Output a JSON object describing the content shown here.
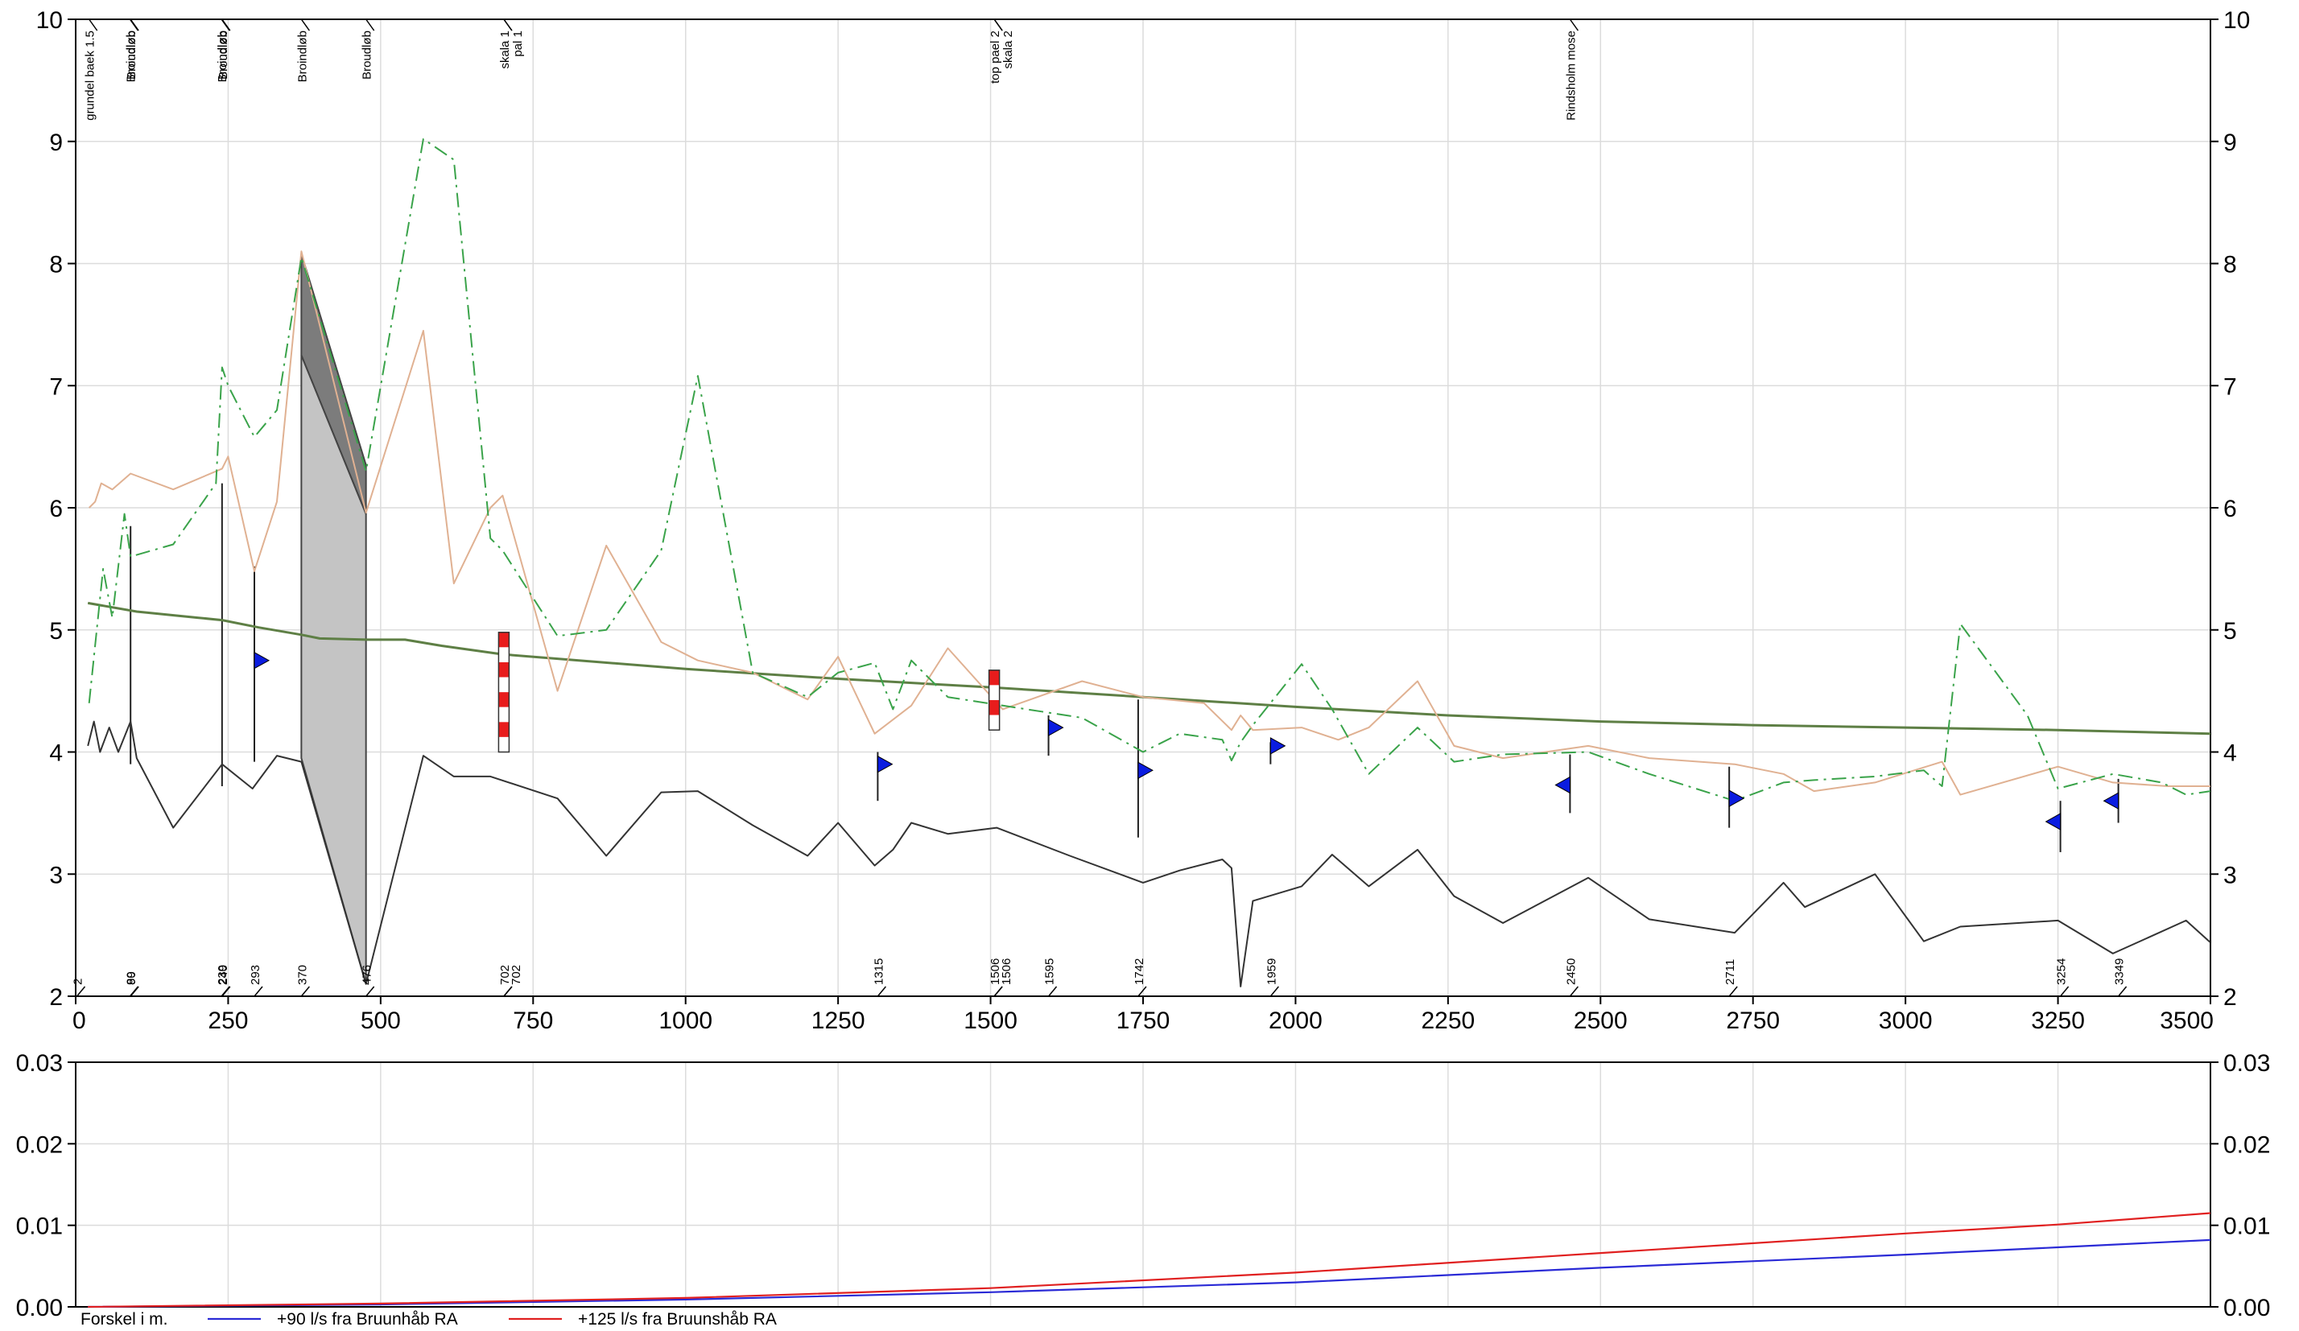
{
  "chart_data": [
    {
      "type": "line",
      "title": "",
      "xlabel": "",
      "ylabel": "",
      "xlim": [
        0,
        3500
      ],
      "ylim": [
        2,
        10
      ],
      "grid": true,
      "x_ticks": [
        "0",
        "250",
        "500",
        "750",
        "1000",
        "1250",
        "1500",
        "1750",
        "2000",
        "2250",
        "2500",
        "2750",
        "3000",
        "3250",
        "3500"
      ],
      "y_ticks": [
        "2",
        "3",
        "4",
        "5",
        "6",
        "7",
        "8",
        "9",
        "10"
      ],
      "top_annotations": [
        {
          "x": 22,
          "label": "grundel baek 1.5"
        },
        {
          "x": 89,
          "label": "Broindløb"
        },
        {
          "x": 90,
          "label": "Broudløb"
        },
        {
          "x": 239,
          "label": "Broindløb"
        },
        {
          "x": 240,
          "label": "Broudløb"
        },
        {
          "x": 370,
          "label": "Broindløb"
        },
        {
          "x": 476,
          "label": "Broudløb"
        },
        {
          "x": 702,
          "label": "skala 1"
        },
        {
          "x": 702,
          "label": "pal 1"
        },
        {
          "x": 1506,
          "label": "top pael 2"
        },
        {
          "x": 1506,
          "label": "skala 2"
        },
        {
          "x": 2450,
          "label": "Rindsholm mose"
        }
      ],
      "bottom_annotations": [
        {
          "x": 2,
          "label": "2"
        },
        {
          "x": 89,
          "label": "89"
        },
        {
          "x": 90,
          "label": "90"
        },
        {
          "x": 239,
          "label": "239"
        },
        {
          "x": 240,
          "label": "240"
        },
        {
          "x": 293,
          "label": "293"
        },
        {
          "x": 370,
          "label": "370"
        },
        {
          "x": 476,
          "label": "476"
        },
        {
          "x": 702,
          "label": "702"
        },
        {
          "x": 702,
          "label": "702"
        },
        {
          "x": 1315,
          "label": "1315"
        },
        {
          "x": 1506,
          "label": "1506"
        },
        {
          "x": 1506,
          "label": "1506"
        },
        {
          "x": 1595,
          "label": "1595"
        },
        {
          "x": 1742,
          "label": "1742"
        },
        {
          "x": 1959,
          "label": "1959"
        },
        {
          "x": 2450,
          "label": "2450"
        },
        {
          "x": 2711,
          "label": "2711"
        },
        {
          "x": 3254,
          "label": "3254"
        },
        {
          "x": 3349,
          "label": "3349"
        }
      ],
      "series": [
        {
          "id": "bed",
          "color": "#333333",
          "style": "solid",
          "points": [
            [
              20,
              4.05
            ],
            [
              30,
              4.25
            ],
            [
              40,
              4.0
            ],
            [
              55,
              4.2
            ],
            [
              70,
              4.0
            ],
            [
              90,
              4.25
            ],
            [
              100,
              3.95
            ],
            [
              160,
              3.38
            ],
            [
              240,
              3.9
            ],
            [
              290,
              3.7
            ],
            [
              330,
              3.97
            ],
            [
              370,
              3.92
            ],
            [
              476,
              2.1
            ],
            [
              570,
              3.97
            ],
            [
              620,
              3.8
            ],
            [
              680,
              3.8
            ],
            [
              790,
              3.62
            ],
            [
              870,
              3.15
            ],
            [
              960,
              3.67
            ],
            [
              1020,
              3.68
            ],
            [
              1110,
              3.4
            ],
            [
              1200,
              3.15
            ],
            [
              1250,
              3.42
            ],
            [
              1310,
              3.07
            ],
            [
              1340,
              3.2
            ],
            [
              1370,
              3.42
            ],
            [
              1430,
              3.33
            ],
            [
              1510,
              3.38
            ],
            [
              1630,
              3.15
            ],
            [
              1750,
              2.93
            ],
            [
              1810,
              3.03
            ],
            [
              1880,
              3.12
            ],
            [
              1895,
              3.05
            ],
            [
              1910,
              2.08
            ],
            [
              1930,
              2.78
            ],
            [
              2010,
              2.9
            ],
            [
              2060,
              3.16
            ],
            [
              2120,
              2.9
            ],
            [
              2200,
              3.2
            ],
            [
              2260,
              2.82
            ],
            [
              2340,
              2.6
            ],
            [
              2480,
              2.97
            ],
            [
              2580,
              2.63
            ],
            [
              2720,
              2.52
            ],
            [
              2800,
              2.93
            ],
            [
              2835,
              2.73
            ],
            [
              2950,
              3.0
            ],
            [
              3030,
              2.45
            ],
            [
              3090,
              2.57
            ],
            [
              3250,
              2.62
            ],
            [
              3340,
              2.35
            ],
            [
              3460,
              2.62
            ],
            [
              3500,
              2.44
            ]
          ]
        },
        {
          "id": "water-level",
          "color": "#5e7f45",
          "style": "solid",
          "points": [
            [
              20,
              5.22
            ],
            [
              100,
              5.15
            ],
            [
              200,
              5.1
            ],
            [
              240,
              5.08
            ],
            [
              300,
              5.02
            ],
            [
              370,
              4.96
            ],
            [
              400,
              4.93
            ],
            [
              476,
              4.92
            ],
            [
              540,
              4.92
            ],
            [
              600,
              4.87
            ],
            [
              700,
              4.8
            ],
            [
              1000,
              4.68
            ],
            [
              1250,
              4.6
            ],
            [
              1500,
              4.53
            ],
            [
              1750,
              4.45
            ],
            [
              2000,
              4.37
            ],
            [
              2250,
              4.3
            ],
            [
              2500,
              4.25
            ],
            [
              2750,
              4.22
            ],
            [
              3000,
              4.2
            ],
            [
              3250,
              4.18
            ],
            [
              3500,
              4.15
            ]
          ]
        },
        {
          "id": "terrain-right",
          "color": "#e0b192",
          "style": "solid",
          "points": [
            [
              22,
              6.0
            ],
            [
              32,
              6.05
            ],
            [
              42,
              6.2
            ],
            [
              60,
              6.15
            ],
            [
              90,
              6.28
            ],
            [
              160,
              6.15
            ],
            [
              240,
              6.32
            ],
            [
              250,
              6.42
            ],
            [
              293,
              5.48
            ],
            [
              330,
              6.05
            ],
            [
              370,
              8.1
            ],
            [
              476,
              5.96
            ],
            [
              570,
              7.45
            ],
            [
              620,
              5.38
            ],
            [
              680,
              6.0
            ],
            [
              700,
              6.1
            ],
            [
              790,
              4.5
            ],
            [
              870,
              5.69
            ],
            [
              960,
              4.9
            ],
            [
              1020,
              4.75
            ],
            [
              1110,
              4.65
            ],
            [
              1200,
              4.43
            ],
            [
              1250,
              4.78
            ],
            [
              1310,
              4.15
            ],
            [
              1370,
              4.38
            ],
            [
              1430,
              4.85
            ],
            [
              1520,
              4.35
            ],
            [
              1650,
              4.58
            ],
            [
              1750,
              4.45
            ],
            [
              1850,
              4.4
            ],
            [
              1895,
              4.18
            ],
            [
              1910,
              4.3
            ],
            [
              1930,
              4.18
            ],
            [
              2010,
              4.2
            ],
            [
              2070,
              4.1
            ],
            [
              2120,
              4.2
            ],
            [
              2200,
              4.58
            ],
            [
              2260,
              4.05
            ],
            [
              2340,
              3.95
            ],
            [
              2480,
              4.05
            ],
            [
              2580,
              3.95
            ],
            [
              2720,
              3.9
            ],
            [
              2800,
              3.82
            ],
            [
              2850,
              3.68
            ],
            [
              2950,
              3.75
            ],
            [
              3060,
              3.92
            ],
            [
              3090,
              3.65
            ],
            [
              3250,
              3.88
            ],
            [
              3340,
              3.75
            ],
            [
              3430,
              3.72
            ],
            [
              3500,
              3.72
            ]
          ]
        },
        {
          "id": "terrain-left",
          "color": "#3aa34a",
          "style": "dashdot",
          "points": [
            [
              22,
              4.4
            ],
            [
              45,
              5.5
            ],
            [
              60,
              5.1
            ],
            [
              80,
              5.95
            ],
            [
              90,
              5.6
            ],
            [
              160,
              5.7
            ],
            [
              230,
              6.2
            ],
            [
              240,
              7.15
            ],
            [
              250,
              7.0
            ],
            [
              293,
              6.58
            ],
            [
              330,
              6.8
            ],
            [
              370,
              8.05
            ],
            [
              476,
              6.3
            ],
            [
              570,
              9.02
            ],
            [
              620,
              8.85
            ],
            [
              680,
              5.75
            ],
            [
              700,
              5.65
            ],
            [
              790,
              4.95
            ],
            [
              870,
              5.0
            ],
            [
              960,
              5.65
            ],
            [
              1020,
              7.08
            ],
            [
              1110,
              4.65
            ],
            [
              1200,
              4.45
            ],
            [
              1250,
              4.65
            ],
            [
              1310,
              4.73
            ],
            [
              1340,
              4.35
            ],
            [
              1370,
              4.75
            ],
            [
              1430,
              4.45
            ],
            [
              1520,
              4.38
            ],
            [
              1650,
              4.28
            ],
            [
              1750,
              4.0
            ],
            [
              1810,
              4.15
            ],
            [
              1880,
              4.1
            ],
            [
              1895,
              3.93
            ],
            [
              1910,
              4.08
            ],
            [
              1930,
              4.22
            ],
            [
              2010,
              4.72
            ],
            [
              2060,
              4.35
            ],
            [
              2120,
              3.82
            ],
            [
              2200,
              4.2
            ],
            [
              2260,
              3.92
            ],
            [
              2340,
              3.98
            ],
            [
              2480,
              4.0
            ],
            [
              2580,
              3.82
            ],
            [
              2720,
              3.6
            ],
            [
              2800,
              3.75
            ],
            [
              2850,
              3.77
            ],
            [
              2950,
              3.8
            ],
            [
              3030,
              3.85
            ],
            [
              3060,
              3.72
            ],
            [
              3090,
              5.05
            ],
            [
              3200,
              4.3
            ],
            [
              3250,
              3.7
            ],
            [
              3340,
              3.82
            ],
            [
              3420,
              3.75
            ],
            [
              3460,
              3.65
            ],
            [
              3500,
              3.68
            ]
          ]
        }
      ],
      "vertical_lines": [
        {
          "x": 90,
          "y0": 3.9,
          "y1": 5.85
        },
        {
          "x": 240,
          "y0": 3.72,
          "y1": 6.2
        },
        {
          "x": 293,
          "y0": 3.92,
          "y1": 5.52
        },
        {
          "x": 1315,
          "y0": 3.6,
          "y1": 4.0
        },
        {
          "x": 1595,
          "y0": 3.97,
          "y1": 4.3
        },
        {
          "x": 1742,
          "y0": 3.3,
          "y1": 4.43
        },
        {
          "x": 1959,
          "y0": 3.9,
          "y1": 4.08
        },
        {
          "x": 2450,
          "y0": 3.5,
          "y1": 3.98
        },
        {
          "x": 2711,
          "y0": 3.38,
          "y1": 3.88
        },
        {
          "x": 3254,
          "y0": 3.18,
          "y1": 3.6
        },
        {
          "x": 3349,
          "y0": 3.42,
          "y1": 3.78
        }
      ],
      "gauges": [
        {
          "x": 702,
          "y0": 4.0,
          "y1": 4.98
        },
        {
          "x": 1506,
          "y0": 4.18,
          "y1": 4.67
        }
      ],
      "markers": [
        {
          "x": 293,
          "y": 4.75,
          "dir": "right"
        },
        {
          "x": 1315,
          "y": 3.9,
          "dir": "right"
        },
        {
          "x": 1595,
          "y": 4.2,
          "dir": "right"
        },
        {
          "x": 1742,
          "y": 3.85,
          "dir": "right"
        },
        {
          "x": 1959,
          "y": 4.05,
          "dir": "right"
        },
        {
          "x": 2450,
          "y": 3.73,
          "dir": "left"
        },
        {
          "x": 2711,
          "y": 3.62,
          "dir": "right"
        },
        {
          "x": 3254,
          "y": 3.43,
          "dir": "left"
        },
        {
          "x": 3349,
          "y": 3.6,
          "dir": "left"
        }
      ],
      "bridges": [
        {
          "x0": 370,
          "x1": 476,
          "top0": 7.25,
          "top1": 5.95,
          "bot0": 3.95,
          "bot1": 2.1,
          "deck0": 8.08,
          "deck1": 6.35
        }
      ]
    },
    {
      "type": "line",
      "title": "",
      "xlabel": "Forskel i m.",
      "xlim": [
        0,
        3500
      ],
      "ylim": [
        0,
        0.03
      ],
      "grid": true,
      "y_ticks": [
        "0.00",
        "0.01",
        "0.02",
        "0.03"
      ],
      "legend_position": "bottom",
      "series": [
        {
          "name": "+90 l/s fra Bruunhåb RA",
          "color": "#2a2ad6",
          "x": [
            20,
            500,
            1000,
            1500,
            2000,
            2500,
            3000,
            3250,
            3500
          ],
          "y": [
            0.0,
            0.0003,
            0.0009,
            0.0018,
            0.003,
            0.0048,
            0.0064,
            0.0073,
            0.0082
          ]
        },
        {
          "name": "+125 l/s fra Bruunshåb RA",
          "color": "#e02020",
          "x": [
            20,
            500,
            1000,
            1500,
            2000,
            2500,
            3000,
            3250,
            3500
          ],
          "y": [
            0.0,
            0.0004,
            0.0011,
            0.0023,
            0.0042,
            0.0066,
            0.009,
            0.0101,
            0.0115
          ]
        }
      ]
    }
  ]
}
